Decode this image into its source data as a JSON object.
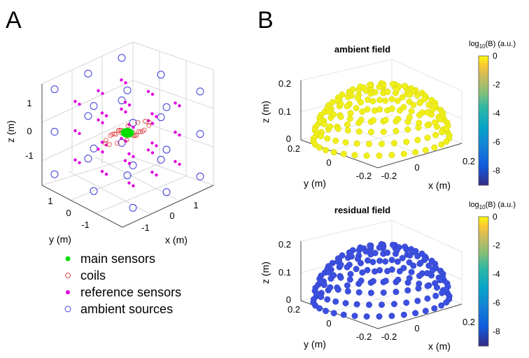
{
  "panels": {
    "a": {
      "letter": "A",
      "z_ticks": [
        "1",
        "0",
        "-1"
      ],
      "y_ticks": [
        "1",
        "0",
        "-1"
      ],
      "x_ticks": [
        "-1",
        "0",
        "1"
      ],
      "z_label": "z (m)",
      "y_label": "y (m)",
      "x_label": "x (m)",
      "legend": [
        {
          "label": "main sensors",
          "marker": "filled-dot",
          "color": "#00dd00"
        },
        {
          "label": "coils",
          "marker": "open-circle-small",
          "color": "#e03a3a"
        },
        {
          "label": "reference sensors",
          "marker": "filled-dot",
          "color": "#e000e0"
        },
        {
          "label": "ambient sources",
          "marker": "open-circle",
          "color": "#3a3ad8"
        }
      ]
    },
    "b": {
      "letter": "B",
      "plots": [
        {
          "title": "ambient field",
          "z_ticks": [
            "0.2",
            "0.1",
            "0"
          ],
          "y_ticks": [
            "0.2",
            "0",
            "-0.2"
          ],
          "x_ticks": [
            "-0.2",
            "0",
            "0.2"
          ],
          "z_label": "z (m)",
          "y_label": "y (m)",
          "x_label": "x (m)",
          "colorbar": {
            "label_main": "log",
            "label_sub": "10",
            "label_rest": "(B) (a.u.)",
            "ticks": [
              "0",
              "-2",
              "-4",
              "-6",
              "-8"
            ]
          }
        },
        {
          "title": "residual field",
          "z_ticks": [
            "0.2",
            "0.1",
            "0"
          ],
          "y_ticks": [
            "0.2",
            "0",
            "-0.2"
          ],
          "x_ticks": [
            "-0.2",
            "0",
            "0.2"
          ],
          "z_label": "z (m)",
          "y_label": "y (m)",
          "x_label": "x (m)",
          "colorbar": {
            "label_main": "log",
            "label_sub": "10",
            "label_rest": "(B) (a.u.)",
            "ticks": [
              "0",
              "-2",
              "-4",
              "-6",
              "-8"
            ]
          }
        }
      ]
    }
  },
  "colors": {
    "main_sensor": "#00dd00",
    "coil": "#e03a3a",
    "reference": "#e000e0",
    "ambient_source": "#3a3ad8",
    "ambient_field_points": "#f0ef1a",
    "residual_field_points": "#3b4fe0",
    "grid": "#dddddd",
    "box": "#555555"
  },
  "chart_data": [
    {
      "type": "scatter",
      "panel": "A",
      "projection": "3d",
      "xlabel": "x (m)",
      "ylabel": "y (m)",
      "zlabel": "z (m)",
      "xlim": [
        -1.8,
        1.8
      ],
      "ylim": [
        -1.8,
        1.8
      ],
      "zlim": [
        -1.8,
        1.8
      ],
      "series": [
        {
          "name": "main sensors",
          "color": "#00dd00",
          "points": [
            [
              0,
              0,
              0
            ]
          ]
        },
        {
          "name": "coils",
          "color": "#e03a3a",
          "layout": "ring around main sensors"
        },
        {
          "name": "reference sensors",
          "color": "#e000e0",
          "layout": "pairs on a cube shell"
        },
        {
          "name": "ambient sources",
          "color": "#3a3ad8",
          "layout": "points on a larger cube shell"
        }
      ]
    },
    {
      "type": "scatter",
      "panel": "B-top",
      "projection": "3d",
      "title": "ambient field",
      "xlabel": "x (m)",
      "ylabel": "y (m)",
      "zlabel": "z (m)",
      "xlim": [
        -0.2,
        0.2
      ],
      "ylim": [
        -0.2,
        0.2
      ],
      "zlim": [
        0,
        0.2
      ],
      "color_metric": "log10(B) (a.u.)",
      "clim": [
        -9,
        0
      ],
      "approx_value": 0
    },
    {
      "type": "scatter",
      "panel": "B-bottom",
      "projection": "3d",
      "title": "residual field",
      "xlabel": "x (m)",
      "ylabel": "y (m)",
      "zlabel": "z (m)",
      "xlim": [
        -0.2,
        0.2
      ],
      "ylim": [
        -0.2,
        0.2
      ],
      "zlim": [
        0,
        0.2
      ],
      "color_metric": "log10(B) (a.u.)",
      "clim": [
        -9,
        0
      ],
      "approx_value": -7
    }
  ]
}
